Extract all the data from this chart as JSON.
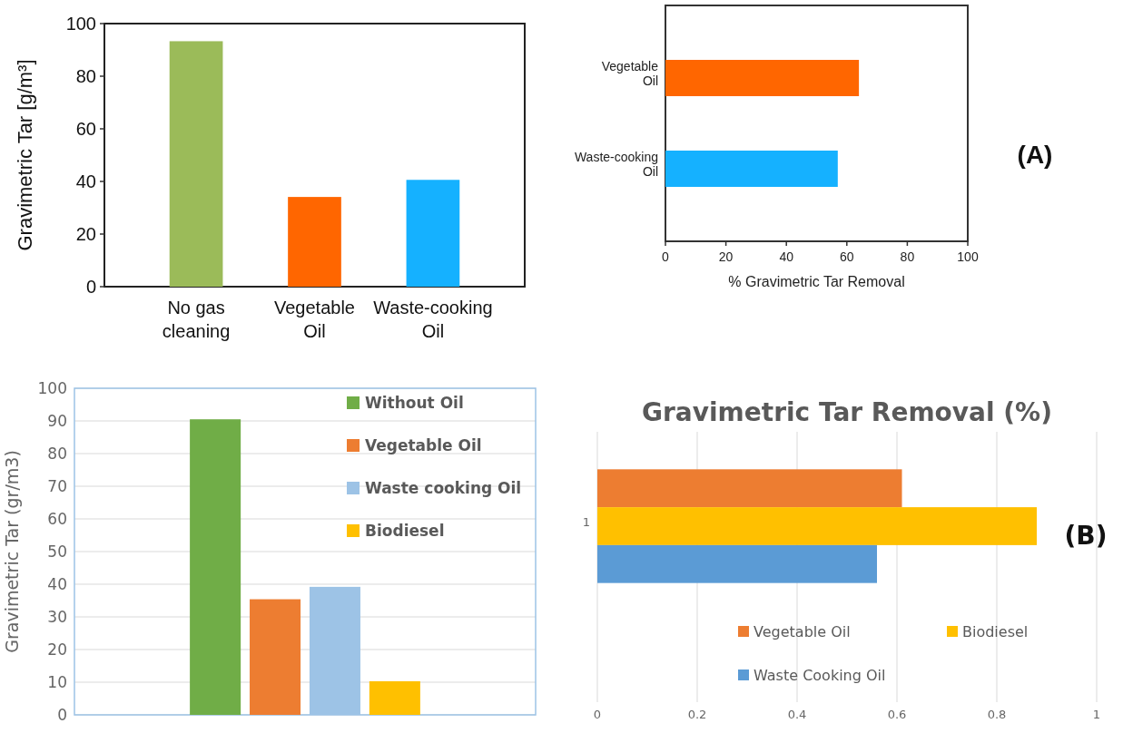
{
  "chart_data": [
    {
      "type": "bar",
      "ylabel": "Gravimetric Tar [g/m³]",
      "categories": [
        "No gas cleaning",
        "Vegetable Oil",
        "Waste-cooking Oil"
      ],
      "values": [
        93.3,
        34.1,
        40.6
      ],
      "colors": [
        "#9bbb59",
        "#ff6600",
        "#15b1ff"
      ],
      "ylim": [
        0,
        100
      ],
      "yticks": [
        0,
        20,
        40,
        60,
        80,
        100
      ]
    },
    {
      "type": "bar",
      "orientation": "horizontal",
      "xlabel": "% Gravimetric Tar Removal",
      "categories": [
        "Vegetable Oil",
        "Waste-cooking Oil"
      ],
      "values": [
        64,
        57
      ],
      "colors": [
        "#ff6600",
        "#15b1ff"
      ],
      "xlim": [
        0,
        100
      ],
      "xticks": [
        0,
        20,
        40,
        60,
        80,
        100
      ],
      "annotations": [
        "(A)"
      ]
    },
    {
      "type": "bar",
      "ylabel": "Gravimetric Tar (gr/m3)",
      "categories": [
        null
      ],
      "series": [
        {
          "name": "Without Oil",
          "color": "#70ad47",
          "values": [
            90.5
          ]
        },
        {
          "name": "Vegetable Oil",
          "color": "#ed7d31",
          "values": [
            35.4
          ]
        },
        {
          "name": "Waste cooking Oil",
          "color": "#9dc3e6",
          "values": [
            39.2
          ]
        },
        {
          "name": "Biodiesel",
          "color": "#ffc000",
          "values": [
            10.3
          ]
        }
      ],
      "ylim": [
        0,
        100
      ],
      "yticks": [
        0,
        10,
        20,
        30,
        40,
        50,
        60,
        70,
        80,
        90,
        100
      ],
      "grid": "y",
      "legend": "top right"
    },
    {
      "type": "bar",
      "orientation": "horizontal",
      "title": "Gravimetric Tar Removal (%)",
      "categories": [
        "1"
      ],
      "series": [
        {
          "name": "Vegetable Oil",
          "color": "#ed7d31",
          "values": [
            0.61
          ]
        },
        {
          "name": "Biodiesel",
          "color": "#ffc000",
          "values": [
            0.88
          ]
        },
        {
          "name": "Waste Cooking Oil",
          "color": "#5b9bd5",
          "values": [
            0.56
          ]
        }
      ],
      "xlim": [
        0,
        1
      ],
      "xticks": [
        0,
        0.2,
        0.4,
        0.6,
        0.8,
        1
      ],
      "grid": "x",
      "legend": "bottom",
      "annotations": [
        "(B)"
      ]
    }
  ]
}
